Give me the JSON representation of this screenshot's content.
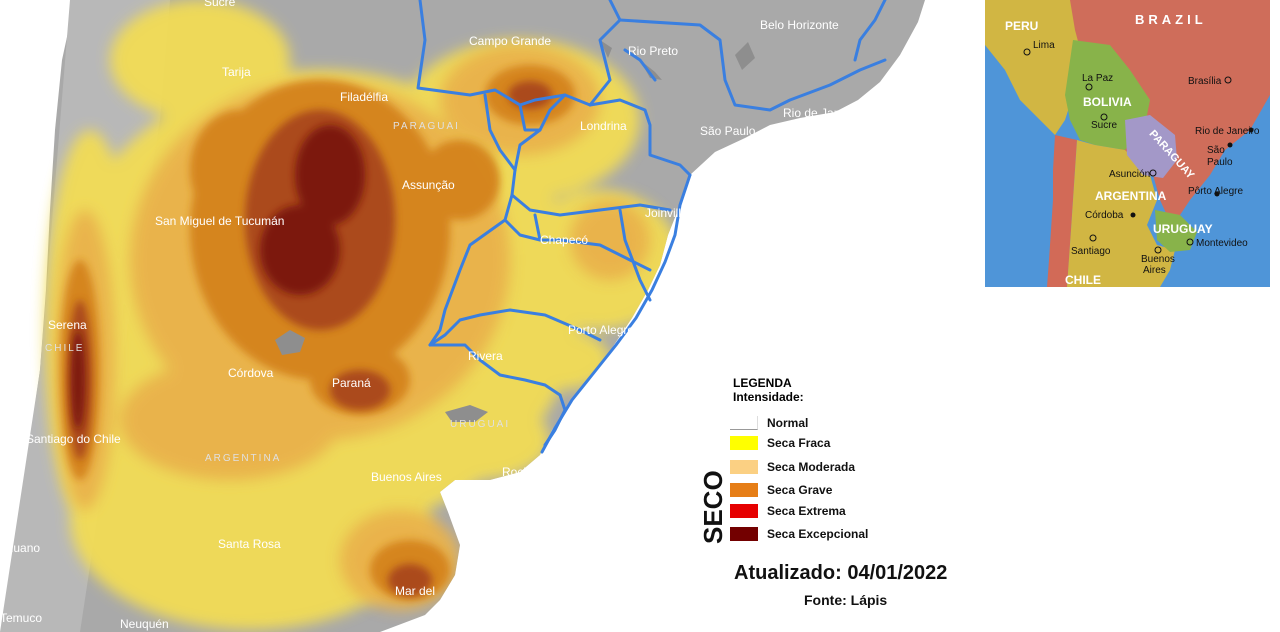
{
  "map": {
    "cities": [
      {
        "name": "Sucre"
      },
      {
        "name": "Tarija"
      },
      {
        "name": "Campo Grande"
      },
      {
        "name": "Belo Horizonte"
      },
      {
        "name": "Rio Preto"
      },
      {
        "name": "Filadélfia"
      },
      {
        "name": "Londrina"
      },
      {
        "name": "São Paulo"
      },
      {
        "name": "Rio de Janeiro"
      },
      {
        "name": "Assunção"
      },
      {
        "name": "San Miguel de Tucumán"
      },
      {
        "name": "Joinville"
      },
      {
        "name": "Chapecó"
      },
      {
        "name": "Porto Alegre"
      },
      {
        "name": "Serena"
      },
      {
        "name": "Rivera"
      },
      {
        "name": "Córdova"
      },
      {
        "name": "Paraná"
      },
      {
        "name": "Santiago do Chile"
      },
      {
        "name": "Buenos Aires"
      },
      {
        "name": "Rocha"
      },
      {
        "name": "Santa Rosa"
      },
      {
        "name": "Mar del"
      },
      {
        "name": "ahuano"
      },
      {
        "name": "Temuco"
      },
      {
        "name": "Neuquén"
      }
    ],
    "country_labels": {
      "paraguay": "PARAGUAI",
      "chile": "CHILE",
      "argentina": "ARGENTINA",
      "uruguay": "URUGUAI"
    },
    "colors": {
      "background": "#bdbdbd",
      "land": "#a9a9a9",
      "ocean": "#ffffff",
      "borders": "#3a7fe0",
      "seca_fraca": "#f2dc54",
      "seca_moderada": "#e9b24c",
      "seca_grave": "#d4831e",
      "seca_extrema": "#a9471c",
      "seca_excepcional": "#7a1410"
    }
  },
  "inset": {
    "countries": {
      "brazil": "BRAZIL",
      "peru": "PERU",
      "bolivia": "BOLIVIA",
      "paraguay": "PARAGUAY",
      "argentina": "ARGENTINA",
      "uruguay": "URUGUAY",
      "chile": "CHILE"
    },
    "cities": {
      "lima": "Lima",
      "la_paz": "La Paz",
      "sucre": "Sucre",
      "brasilia": "Brasília",
      "rio": "Rio de Janeiro",
      "sao_paulo_1": "São",
      "sao_paulo_2": "Paulo",
      "asuncion": "Asunción",
      "porto_alegre": "Pôrto Alegre",
      "cordoba": "Córdoba",
      "santiago": "Santiago",
      "montevideo": "Montevideo",
      "buenos_aires_1": "Buenos",
      "buenos_aires_2": "Aires"
    }
  },
  "legend": {
    "title": "LEGENDA",
    "subtitle": "Intensidade:",
    "items": [
      {
        "label": "Normal",
        "color": "#ffffff"
      },
      {
        "label": "Seca Fraca",
        "color": "#ffff00"
      },
      {
        "label": "Seca Moderada",
        "color": "#fbd083"
      },
      {
        "label": "Seca Grave",
        "color": "#e67e16"
      },
      {
        "label": "Seca Extrema",
        "color": "#e60000"
      },
      {
        "label": "Seca Excepcional",
        "color": "#730000"
      }
    ],
    "side_label": "SECO",
    "updated": "Atualizado: 04/01/2022",
    "source": "Fonte: Lápis"
  }
}
